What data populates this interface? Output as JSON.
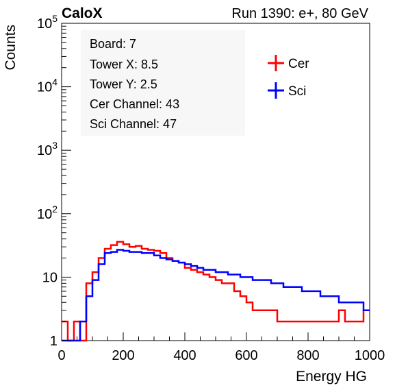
{
  "header": {
    "left_label": "CaloX",
    "right_label": "Run 1390: e+, 80 GeV"
  },
  "info_box": {
    "lines": [
      "Board: 7",
      "Tower X: 8.5",
      "Tower Y: 2.5",
      "Cer Channel: 43",
      "Sci Channel: 47"
    ]
  },
  "legend": {
    "placement": "top-right",
    "entries": [
      {
        "label": "Cer",
        "color": "#ff0000"
      },
      {
        "label": "Sci",
        "color": "#0000ff"
      }
    ]
  },
  "chart_data": {
    "type": "line",
    "style": "step-histogram",
    "xlabel": "Energy HG",
    "ylabel": "Counts",
    "xlim": [
      0,
      1000
    ],
    "ylim": [
      1,
      100000
    ],
    "yscale": "log",
    "x_ticks": [
      "0",
      "200",
      "400",
      "600",
      "800",
      "1000"
    ],
    "y_ticks": [
      "1",
      "10",
      "10^2",
      "10^3",
      "10^4",
      "10^5"
    ],
    "grid": false,
    "x": [
      0,
      20,
      40,
      60,
      80,
      100,
      120,
      140,
      160,
      180,
      200,
      220,
      240,
      260,
      280,
      300,
      320,
      340,
      360,
      380,
      400,
      420,
      440,
      460,
      480,
      500,
      520,
      540,
      560,
      580,
      600,
      620,
      640,
      660,
      680,
      700,
      720,
      740,
      760,
      780,
      800,
      820,
      840,
      860,
      880,
      900,
      920,
      940,
      960,
      980
    ],
    "series": [
      {
        "name": "Cer",
        "color": "#ff0000",
        "values": [
          2,
          1,
          2,
          1,
          8,
          12,
          20,
          28,
          32,
          36,
          33,
          30,
          31,
          28,
          27,
          26,
          24,
          20,
          18,
          17,
          14,
          13,
          12,
          11,
          10,
          9,
          8,
          8,
          6,
          5,
          4,
          3,
          3,
          3,
          3,
          2,
          2,
          2,
          2,
          2,
          2,
          2,
          2,
          2,
          2,
          3,
          2,
          2,
          2,
          3
        ]
      },
      {
        "name": "Sci",
        "color": "#0000ff",
        "values": [
          1,
          1,
          1,
          2,
          5,
          9,
          16,
          24,
          25,
          27,
          26,
          25,
          25,
          24,
          24,
          22,
          20,
          19,
          18,
          17,
          16,
          15,
          14,
          13,
          13,
          12,
          12,
          11,
          11,
          10,
          10,
          9,
          9,
          9,
          8,
          8,
          7,
          7,
          7,
          6,
          6,
          6,
          5,
          5,
          5,
          4,
          4,
          4,
          4,
          3
        ]
      }
    ]
  }
}
